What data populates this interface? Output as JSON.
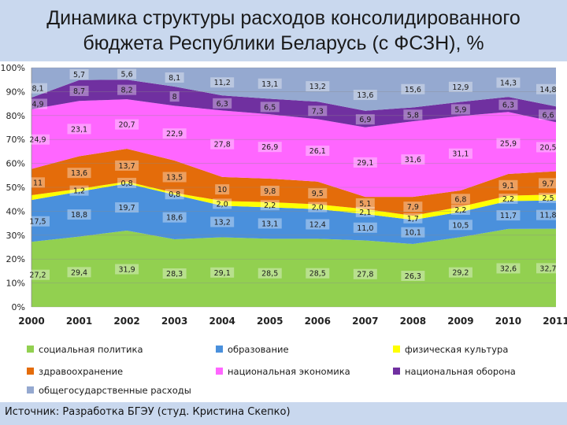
{
  "slide": {
    "title": "Динамика структуры расходов консолидированного бюджета Республики Беларусь (с ФСЗН), %",
    "source": "Источник: Разработка БГЭУ (студ. Кристина Скепко)"
  },
  "chart_data": {
    "type": "area",
    "stacked": true,
    "x": [
      "2000",
      "2001",
      "2002",
      "2003",
      "2004",
      "2005",
      "2006",
      "2007",
      "2008",
      "2009",
      "2010",
      "2011"
    ],
    "yticks": [
      "0%",
      "10%",
      "20%",
      "30%",
      "40%",
      "50%",
      "60%",
      "70%",
      "80%",
      "90%",
      "100%"
    ],
    "ylim": [
      0,
      100
    ],
    "legend_position": "bottom",
    "series": [
      {
        "name": "социальная политика",
        "color": "#92d050",
        "values": [
          27.2,
          29.4,
          31.9,
          28.3,
          29.1,
          28.5,
          28.5,
          27.8,
          26.3,
          29.2,
          32.6,
          32.7
        ],
        "labels": [
          "27,2",
          "29,4",
          "31,9",
          "28,3",
          "29,1",
          "28,5",
          "28,5",
          "27,8",
          "26,3",
          "29,2",
          "32,6",
          "32,7"
        ]
      },
      {
        "name": "образование",
        "color": "#4a90dc",
        "values": [
          17.5,
          18.8,
          19.7,
          18.6,
          13.2,
          13.1,
          12.4,
          11.0,
          10.1,
          10.5,
          11.7,
          11.8
        ],
        "labels": [
          "17,5",
          "18,8",
          "19,7",
          "18,6",
          "13,2",
          "13,1",
          "12,4",
          "11,0",
          "10,1",
          "10,5",
          "11,7",
          "11,8"
        ]
      },
      {
        "name": "физическая культура",
        "color": "#ffff00",
        "values": [
          2.0,
          1.2,
          0.8,
          0.8,
          2.0,
          2.2,
          2.0,
          2.1,
          1.7,
          2.2,
          2.2,
          2.5
        ],
        "labels": [
          "",
          "1,2",
          "0,8",
          "0,8",
          "2,0",
          "2,2",
          "2,0",
          "2,1",
          "1,7",
          "2,2",
          "2,2",
          "2,5"
        ]
      },
      {
        "name": "здравоохранение",
        "color": "#e46c0a",
        "values": [
          11,
          13.6,
          13.7,
          13.5,
          10.0,
          9.8,
          9.5,
          5.1,
          7.9,
          6.8,
          9.1,
          9.7
        ],
        "labels": [
          "11",
          "13,6",
          "13,7",
          "13,5",
          "10",
          "9,8",
          "9,5",
          "5,1",
          "7,9",
          "6,8",
          "9,1",
          "9,7"
        ]
      },
      {
        "name": "национальная экономика",
        "color": "#ff66ff",
        "values": [
          24.9,
          23.1,
          20.7,
          22.9,
          27.8,
          26.9,
          26.1,
          29.1,
          31.6,
          31.1,
          25.9,
          20.5
        ],
        "labels": [
          "24,9",
          "23,1",
          "20,7",
          "22,9",
          "27,8",
          "26,9",
          "26,1",
          "29,1",
          "31,6",
          "31,1",
          "25,9",
          "20,5"
        ]
      },
      {
        "name": "национальная оборона",
        "color": "#7030a0",
        "values": [
          4.9,
          8.7,
          8.2,
          8.0,
          6.3,
          6.5,
          7.3,
          6.9,
          5.8,
          5.9,
          6.3,
          6.6
        ],
        "labels": [
          "4,9",
          "8,7",
          "8,2",
          "8",
          "6,3",
          "6,5",
          "7,3",
          "6,9",
          "5,8",
          "5,9",
          "6,3",
          "6,6"
        ]
      },
      {
        "name": "общегосударственные расходы",
        "color": "#95a9d0",
        "values": [
          8.1,
          5.7,
          5.6,
          8.1,
          11.2,
          13.1,
          13.2,
          13.6,
          15.6,
          12.9,
          14.3,
          14.8
        ],
        "labels": [
          "8,1",
          "5,7",
          "5,6",
          "8,1",
          "11,2",
          "13,1",
          "13,2",
          "13,6",
          "15,6",
          "12,9",
          "14,3",
          "14,8"
        ]
      }
    ]
  }
}
